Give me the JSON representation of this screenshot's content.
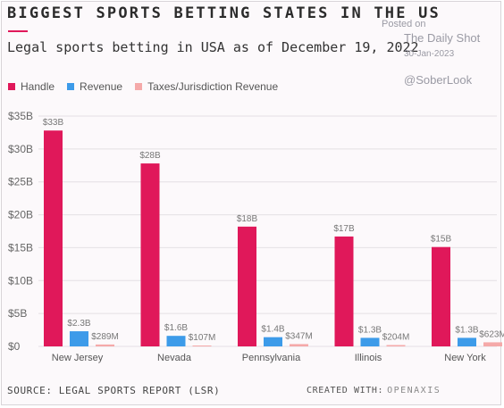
{
  "header": {
    "title": "BIGGEST SPORTS BETTING STATES IN THE US",
    "subtitle": "Legal sports betting in USA as of December 19, 2022"
  },
  "watermark": {
    "posted": "Posted on",
    "source": "The Daily Shot",
    "date": "30-Jan-2023",
    "handle": "@SoberLook"
  },
  "footer": {
    "source": "SOURCE: LEGAL SPORTS REPORT (LSR)",
    "created_label": "CREATED WITH:",
    "created_brand": "OPENAXIS"
  },
  "colors": {
    "handle": "#e0185a",
    "revenue": "#3d9be9",
    "taxes": "#f5a9a9",
    "grid": "#e4e0e4",
    "text": "#666666"
  },
  "chart_data": {
    "type": "bar",
    "categories": [
      "New Jersey",
      "Nevada",
      "Pennsylvania",
      "Illinois",
      "New York"
    ],
    "series": [
      {
        "name": "Handle",
        "values": [
          32.8,
          27.8,
          18.2,
          16.7,
          15.1
        ],
        "labels": [
          "$33B",
          "$28B",
          "$18B",
          "$17B",
          "$15B"
        ]
      },
      {
        "name": "Revenue",
        "values": [
          2.3,
          1.6,
          1.4,
          1.3,
          1.3
        ],
        "labels": [
          "$2.3B",
          "$1.6B",
          "$1.4B",
          "$1.3B",
          "$1.3B"
        ]
      },
      {
        "name": "Taxes/Jurisdiction Revenue",
        "values": [
          0.289,
          0.107,
          0.347,
          0.204,
          0.623
        ],
        "labels": [
          "$289M",
          "$107M",
          "$347M",
          "$204M",
          "$623M"
        ]
      }
    ],
    "yticks": [
      "$0",
      "$5B",
      "$10B",
      "$15B",
      "$20B",
      "$25B",
      "$30B",
      "$35B"
    ],
    "ylim": [
      0,
      35
    ],
    "grid": true,
    "legend_position": "top-left"
  }
}
